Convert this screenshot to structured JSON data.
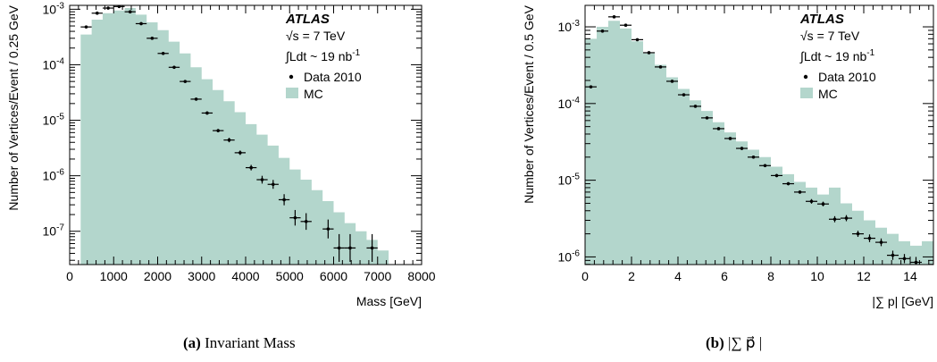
{
  "colors": {
    "mc_fill": "#b3d6cc",
    "data": "#000000",
    "frame": "#000000"
  },
  "legend": {
    "experiment": "ATLAS",
    "energy": "√s = 7 TeV",
    "lumi": "∫Ldt ~ 19 nb",
    "lumi_exp": "-1",
    "data_label": "Data 2010",
    "mc_label": "MC"
  },
  "chart_data": [
    {
      "type": "bar",
      "panel": "a",
      "caption_letter": "(a)",
      "caption_text": "Invariant Mass",
      "xlabel": "Mass [GeV]",
      "ylabel": "Number of Vertices/Event / 0.25 GeV",
      "log_y": true,
      "xlim": [
        0,
        8000
      ],
      "ylim_log10": [
        -7.6,
        -2.93
      ],
      "x_ticks": [
        0,
        1000,
        2000,
        3000,
        4000,
        5000,
        6000,
        7000,
        8000
      ],
      "x_tick_labels": [
        "0",
        "1000",
        "2000",
        "3000",
        "4000",
        "5000",
        "6000",
        "7000",
        "8000"
      ],
      "y_ticks_log10": [
        -7,
        -6,
        -5,
        -4,
        -3
      ],
      "y_tick_labels": [
        {
          "base": "10",
          "exp": "-7"
        },
        {
          "base": "10",
          "exp": "-6"
        },
        {
          "base": "10",
          "exp": "-5"
        },
        {
          "base": "10",
          "exp": "-4"
        },
        {
          "base": "10",
          "exp": "-3"
        }
      ],
      "mc": {
        "bin_edges": [
          250,
          500,
          750,
          1000,
          1250,
          1500,
          1750,
          2000,
          2250,
          2500,
          2750,
          3000,
          3250,
          3500,
          3750,
          4000,
          4250,
          4500,
          4750,
          5000,
          5250,
          5500,
          5750,
          6000,
          6250,
          6500,
          6750,
          7000,
          7250
        ],
        "values": [
          0.00035,
          0.00065,
          0.00085,
          0.00095,
          0.00105,
          0.0008,
          0.00058,
          0.00042,
          0.00026,
          0.00016,
          9e-05,
          5.5e-05,
          3.5e-05,
          2.2e-05,
          1.4e-05,
          8.5e-06,
          5.5e-06,
          3.5e-06,
          2.1e-06,
          1.3e-06,
          8.5e-07,
          5.5e-07,
          3.5e-07,
          2.2e-07,
          1.4e-07,
          1e-07,
          7e-08,
          4.5e-08
        ]
      },
      "data": {
        "x": [
          375,
          625,
          875,
          1125,
          1375,
          1625,
          1875,
          2125,
          2375,
          2625,
          2875,
          3125,
          3375,
          3625,
          3875,
          4125,
          4375,
          4625,
          4875,
          5125,
          5375,
          5875,
          6125,
          6375,
          6875
        ],
        "y": [
          0.00048,
          0.00085,
          0.00105,
          0.00112,
          0.0009,
          0.00055,
          0.0003,
          0.00016,
          9e-05,
          5e-05,
          2.4e-05,
          1.35e-05,
          6.5e-06,
          4.4e-06,
          2.6e-06,
          1.4e-06,
          8.5e-07,
          7e-07,
          3.7e-07,
          1.75e-07,
          1.5e-07,
          1.1e-07,
          5e-08,
          5e-08,
          5e-08
        ],
        "yerr_log10": [
          0.02,
          0.02,
          0.02,
          0.02,
          0.02,
          0.02,
          0.02,
          0.02,
          0.02,
          0.02,
          0.02,
          0.03,
          0.03,
          0.04,
          0.04,
          0.05,
          0.07,
          0.08,
          0.1,
          0.14,
          0.15,
          0.17,
          0.25,
          0.25,
          0.25
        ]
      }
    },
    {
      "type": "bar",
      "panel": "b",
      "caption_letter": "(b)",
      "caption_text": "|∑ p⃗ |",
      "xlabel": "|∑ p| [GeV]",
      "ylabel": "Number of Vertices/Event / 0.5 GeV",
      "log_y": true,
      "xlim": [
        0,
        15
      ],
      "ylim_log10": [
        -6.1,
        -2.72
      ],
      "x_ticks": [
        0,
        2,
        4,
        6,
        8,
        10,
        12,
        14
      ],
      "x_tick_labels": [
        "0",
        "2",
        "4",
        "6",
        "8",
        "10",
        "12",
        "14"
      ],
      "y_ticks_log10": [
        -6,
        -5,
        -4,
        -3
      ],
      "y_tick_labels": [
        {
          "base": "10",
          "exp": "-6"
        },
        {
          "base": "10",
          "exp": "-5"
        },
        {
          "base": "10",
          "exp": "-4"
        },
        {
          "base": "10",
          "exp": "-3"
        }
      ],
      "mc": {
        "bin_edges": [
          0,
          0.5,
          1.0,
          1.5,
          2.0,
          2.5,
          3.0,
          3.5,
          4.0,
          4.5,
          5.0,
          5.5,
          6.0,
          6.5,
          7.0,
          7.5,
          8.0,
          8.5,
          9.0,
          9.5,
          10.0,
          10.5,
          11.0,
          11.5,
          12.0,
          12.5,
          13.0,
          13.5,
          14.0,
          14.5,
          15.0
        ],
        "values": [
          0.0007,
          0.001,
          0.0012,
          0.00095,
          0.00065,
          0.00045,
          0.00032,
          0.00022,
          0.000155,
          0.00011,
          8e-05,
          5.7e-05,
          4.2e-05,
          3.2e-05,
          2.5e-05,
          2e-05,
          1.5e-05,
          1.2e-05,
          9.5e-06,
          8e-06,
          6.5e-06,
          8e-06,
          5e-06,
          4e-06,
          3e-06,
          2.4e-06,
          2e-06,
          1.6e-06,
          1.4e-06,
          1.6e-06
        ]
      },
      "data": {
        "x": [
          0.25,
          0.75,
          1.25,
          1.75,
          2.25,
          2.75,
          3.25,
          3.75,
          4.25,
          4.75,
          5.25,
          5.75,
          6.25,
          6.75,
          7.25,
          7.75,
          8.25,
          8.75,
          9.25,
          9.75,
          10.25,
          10.75,
          11.25,
          11.75,
          12.25,
          12.75,
          13.25,
          13.75,
          14.25
        ],
        "y": [
          0.000165,
          0.00088,
          0.00135,
          0.00105,
          0.00068,
          0.00046,
          0.0003,
          0.000195,
          0.00013,
          9.2e-05,
          6.5e-05,
          4.7e-05,
          3.5e-05,
          2.6e-05,
          2e-05,
          1.55e-05,
          1.15e-05,
          9e-06,
          7e-06,
          5.3e-06,
          4.9e-06,
          3.1e-06,
          3.2e-06,
          2e-06,
          1.75e-06,
          1.55e-06,
          1.05e-06,
          9.5e-07,
          8.5e-07
        ],
        "yerr_log10": [
          0.01,
          0.01,
          0.01,
          0.01,
          0.01,
          0.01,
          0.01,
          0.01,
          0.01,
          0.01,
          0.01,
          0.01,
          0.01,
          0.02,
          0.02,
          0.02,
          0.02,
          0.02,
          0.02,
          0.03,
          0.03,
          0.04,
          0.04,
          0.04,
          0.05,
          0.05,
          0.06,
          0.06,
          0.07
        ]
      }
    }
  ]
}
